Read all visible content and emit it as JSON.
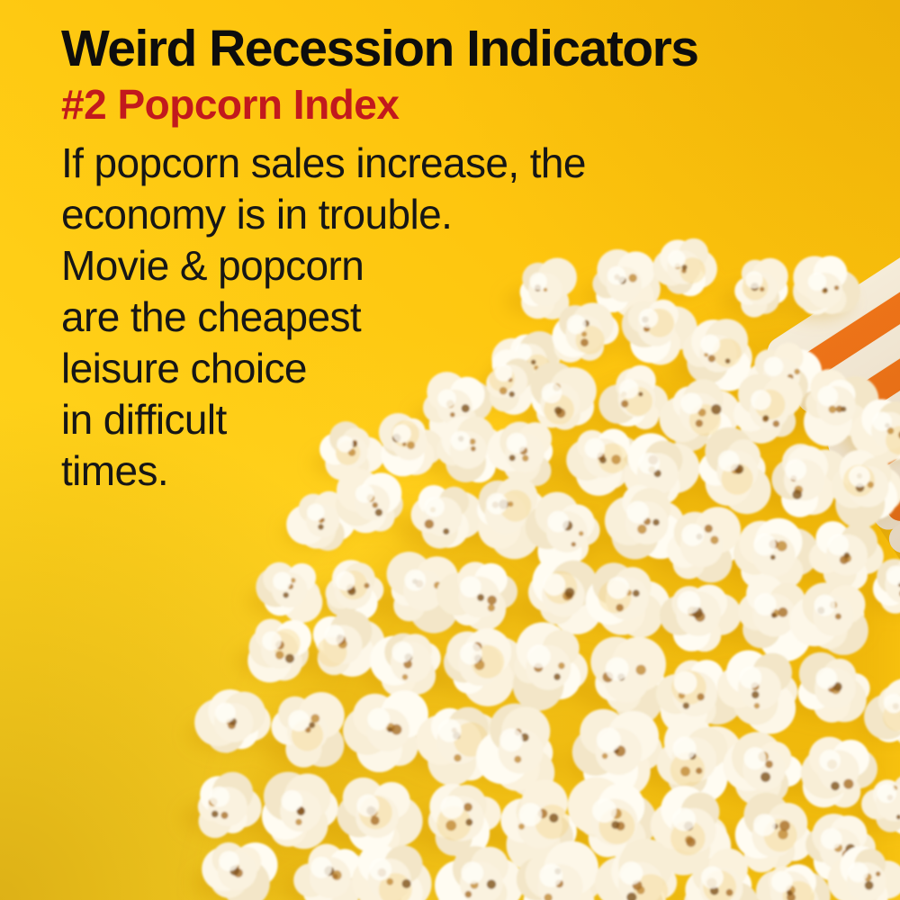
{
  "poster": {
    "title": "Weird Recession Indicators",
    "subtitle": "#2 Popcorn Index",
    "body_lines": [
      "If popcorn sales increase, the",
      "economy is in trouble.",
      "Movie & popcorn",
      "are the cheapest",
      "leisure choice",
      "in difficult",
      "times."
    ]
  },
  "photo": {
    "subject": "popcorn spilling from a tilted striped snack box onto a yellow surface",
    "box_position": "top-right, entering from right edge at a diagonal",
    "popcorn_area": "scattered pile covering the lower-right two-thirds"
  },
  "colors": {
    "background_yellow": "#FEC50E",
    "title_black": "#0D0D0D",
    "subtitle_red": "#C2191D",
    "box_orange": "#EC6F1B",
    "box_cream": "#F5ECD9",
    "popcorn_cream": "#FAF2DF",
    "shadow_amber": "#CE9210"
  }
}
